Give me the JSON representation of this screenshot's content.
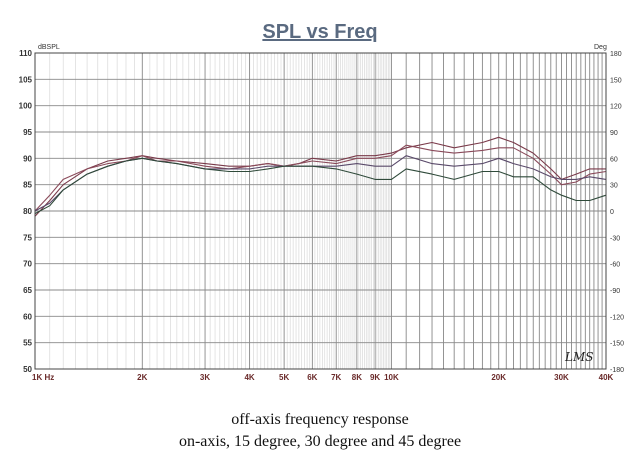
{
  "chart_data": {
    "type": "line",
    "title": "SPL vs Freq",
    "y_unit_left": "dBSPL",
    "y_unit_right": "Deg",
    "ylim": [
      50,
      110
    ],
    "ylim_right": [
      -180,
      180
    ],
    "xlim": [
      1000,
      40000
    ],
    "x_scale": "log",
    "grid": true,
    "y_ticks_left": [
      "50",
      "55",
      "60",
      "65",
      "70",
      "75",
      "80",
      "85",
      "90",
      "95",
      "100",
      "105",
      "110"
    ],
    "y_ticks_right": [
      "-180",
      "-150",
      "-120",
      "-90",
      "-60",
      "-30",
      "0",
      "30",
      "60",
      "90",
      "120",
      "150",
      "180"
    ],
    "x_tick_labels": [
      {
        "f": 1000,
        "label": "1K Hz"
      },
      {
        "f": 2000,
        "label": "2K"
      },
      {
        "f": 3000,
        "label": "3K"
      },
      {
        "f": 4000,
        "label": "4K"
      },
      {
        "f": 5000,
        "label": "5K"
      },
      {
        "f": 6000,
        "label": "6K"
      },
      {
        "f": 7000,
        "label": "7K"
      },
      {
        "f": 8000,
        "label": "8K"
      },
      {
        "f": 9000,
        "label": "9K"
      },
      {
        "f": 10000,
        "label": "10K"
      },
      {
        "f": 20000,
        "label": "20K"
      },
      {
        "f": 30000,
        "label": "30K"
      },
      {
        "f": 40000,
        "label": "40K"
      }
    ],
    "series": [
      {
        "color": "#7a3a4a",
        "x": [
          1000,
          1100,
          1200,
          1400,
          1600,
          1800,
          2000,
          2200,
          2500,
          3000,
          3500,
          4000,
          4500,
          5000,
          5500,
          6000,
          7000,
          8000,
          9000,
          10000,
          11000,
          13000,
          15000,
          18000,
          20000,
          22000,
          25000,
          28000,
          30000,
          33000,
          36000,
          40000
        ],
        "y": [
          79,
          82,
          85,
          88,
          89.5,
          90,
          90.5,
          90,
          89.5,
          89,
          88.5,
          88.5,
          89,
          88.5,
          89,
          90,
          89.5,
          90.5,
          90.5,
          91,
          92,
          93,
          92,
          93,
          94,
          93,
          91,
          88,
          86,
          87,
          88,
          88
        ]
      },
      {
        "color": "#8a4a5a",
        "x": [
          1000,
          1100,
          1200,
          1400,
          1600,
          1800,
          2000,
          2200,
          2500,
          3000,
          3500,
          4000,
          4500,
          5000,
          5500,
          6000,
          7000,
          8000,
          9000,
          10000,
          11000,
          13000,
          15000,
          18000,
          20000,
          22000,
          25000,
          28000,
          30000,
          33000,
          36000,
          40000
        ],
        "y": [
          80,
          83,
          86,
          88,
          89,
          89.5,
          90.5,
          89.5,
          89.5,
          88.5,
          88,
          88.5,
          89,
          88.5,
          89,
          89.5,
          89,
          90,
          90,
          90.5,
          92.5,
          91.5,
          91,
          91.5,
          92,
          92,
          90,
          87,
          85,
          85.5,
          87,
          87.5
        ]
      },
      {
        "color": "#5a4a6a",
        "x": [
          1000,
          1100,
          1200,
          1400,
          1600,
          1800,
          2000,
          2200,
          2500,
          3000,
          3500,
          4000,
          4500,
          5000,
          5500,
          6000,
          7000,
          8000,
          9000,
          10000,
          11000,
          13000,
          15000,
          18000,
          20000,
          22000,
          25000,
          28000,
          30000,
          33000,
          36000,
          40000
        ],
        "y": [
          80,
          81.5,
          84,
          87,
          88.5,
          89.5,
          90,
          89.5,
          89,
          88,
          88,
          88,
          88.5,
          88.5,
          88.5,
          88.5,
          88.5,
          89,
          88.5,
          88.5,
          90.5,
          89,
          88.5,
          89,
          90,
          89,
          88,
          86.5,
          86,
          86,
          86.5,
          86
        ]
      },
      {
        "color": "#2f4a3a",
        "x": [
          1000,
          1100,
          1200,
          1400,
          1600,
          1800,
          2000,
          2200,
          2500,
          3000,
          3500,
          4000,
          4500,
          5000,
          5500,
          6000,
          7000,
          8000,
          9000,
          10000,
          11000,
          13000,
          15000,
          18000,
          20000,
          22000,
          25000,
          28000,
          30000,
          33000,
          36000,
          40000
        ],
        "y": [
          79.5,
          81,
          84,
          87,
          88.5,
          89.5,
          90,
          89.5,
          89,
          88,
          87.5,
          87.5,
          88,
          88.5,
          88.5,
          88.5,
          88,
          87,
          86,
          86,
          88,
          87,
          86,
          87.5,
          87.5,
          86.5,
          86.5,
          84,
          83,
          82,
          82,
          83
        ]
      }
    ]
  },
  "watermark": "LMS",
  "caption": {
    "line1": "off-axis frequency response",
    "line2": "on-axis, 15 degree, 30 degree and 45 degree"
  }
}
